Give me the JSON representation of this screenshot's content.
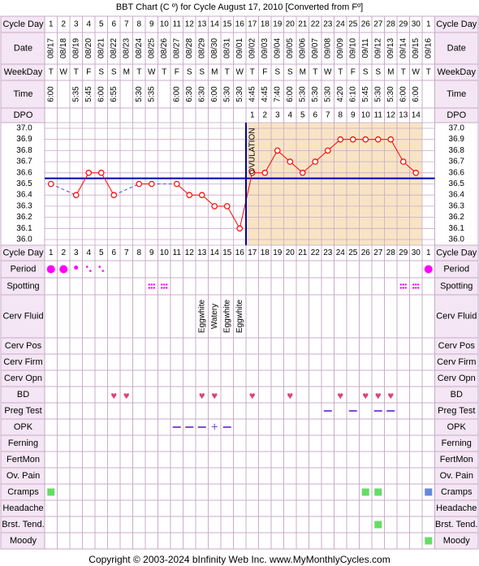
{
  "title": "BBT Chart (C º) for Cycle August 17, 2010  [Converted from Fº]",
  "footer": "Copyright © 2003-2024 bInfinity Web Inc.     www.MyMonthlyCycles.com",
  "row_labels": {
    "cycle_day": "Cycle Day",
    "date": "Date",
    "weekday": "WeekDay",
    "time": "Time",
    "dpo": "DPO",
    "period": "Period",
    "spotting": "Spotting",
    "cerv_fluid": "Cerv Fluid",
    "cerv_pos": "Cerv Pos",
    "cerv_firm": "Cerv Firm",
    "cerv_opn": "Cerv Opn",
    "bd": "BD",
    "preg_test": "Preg Test",
    "opk": "OPK",
    "ferning": "Ferning",
    "fertmon": "FertMon",
    "ov_pain": "Ov. Pain",
    "cramps": "Cramps",
    "headache": "Headache",
    "brst_tend": "Brst. Tend.",
    "moody": "Moody"
  },
  "colors": {
    "grid": "#c9a9c9",
    "label_bg": "#f4e6f4",
    "luteal_bg": "#f8e4c4",
    "temp_line": "#ff0000",
    "coverline": "#0000aa",
    "ovulation_line": "#0000aa",
    "period": "#ff00ff",
    "heart": "#e0407a",
    "opk_neg": "#8844dd",
    "preg_neg": "#8844dd",
    "symptom_green": "#66dd66",
    "symptom_blue": "#6688dd"
  },
  "chart_data": {
    "type": "line",
    "cycle_days": [
      "1",
      "2",
      "3",
      "4",
      "5",
      "6",
      "7",
      "8",
      "9",
      "10",
      "11",
      "12",
      "13",
      "14",
      "15",
      "16",
      "17",
      "18",
      "19",
      "20",
      "21",
      "22",
      "23",
      "24",
      "25",
      "26",
      "27",
      "28",
      "29",
      "30",
      "1"
    ],
    "dates": [
      "08/17",
      "08/18",
      "08/19",
      "08/20",
      "08/21",
      "08/22",
      "08/23",
      "08/24",
      "08/25",
      "08/26",
      "08/27",
      "08/28",
      "08/29",
      "08/30",
      "08/31",
      "09/01",
      "09/02",
      "09/03",
      "09/04",
      "09/05",
      "09/06",
      "09/07",
      "09/08",
      "09/09",
      "09/10",
      "09/11",
      "09/12",
      "09/13",
      "09/14",
      "09/15",
      "09/16"
    ],
    "weekdays": [
      "T",
      "W",
      "T",
      "F",
      "S",
      "S",
      "M",
      "T",
      "W",
      "T",
      "F",
      "S",
      "S",
      "M",
      "T",
      "W",
      "T",
      "F",
      "S",
      "S",
      "M",
      "T",
      "W",
      "T",
      "F",
      "S",
      "S",
      "M",
      "T",
      "W",
      "T"
    ],
    "times": [
      "6:00",
      "",
      "5:35",
      "5:45",
      "6:00",
      "6:55",
      "",
      "5:30",
      "5:35",
      "",
      "6:00",
      "6:30",
      "6:30",
      "6:00",
      "5:30",
      "5:30",
      "4:45",
      "4:45",
      "7:40",
      "6:00",
      "5:30",
      "5:30",
      "5:30",
      "4:20",
      "6:10",
      "5:45",
      "5:30",
      "5:30",
      "6:00",
      "6:00",
      ""
    ],
    "dpo": [
      "",
      "",
      "",
      "",
      "",
      "",
      "",
      "",
      "",
      "",
      "",
      "",
      "",
      "",
      "",
      "",
      "1",
      "2",
      "3",
      "4",
      "5",
      "6",
      "7",
      "8",
      "9",
      "10",
      "11",
      "12",
      "13",
      "14",
      ""
    ],
    "temps": [
      36.5,
      null,
      36.4,
      36.6,
      36.6,
      36.4,
      null,
      36.5,
      36.5,
      null,
      36.5,
      36.4,
      36.4,
      36.3,
      36.3,
      36.1,
      36.6,
      36.6,
      36.8,
      36.7,
      36.6,
      36.7,
      36.8,
      36.9,
      36.9,
      36.9,
      36.9,
      36.9,
      36.7,
      36.6,
      null
    ],
    "y_ticks": [
      "37.0",
      "36.9",
      "36.8",
      "36.7",
      "36.6",
      "36.5",
      "36.4",
      "36.3",
      "36.2",
      "36.1",
      "36.0"
    ],
    "ylim": [
      36.0,
      37.0
    ],
    "coverline": 36.55,
    "ovulation_day": 16,
    "ovulation_label": "OVULATION",
    "period": [
      "big",
      "big",
      "medium",
      "small",
      "small",
      "",
      "",
      "",
      "",
      "",
      "",
      "",
      "",
      "",
      "",
      "",
      "",
      "",
      "",
      "",
      "",
      "",
      "",
      "",
      "",
      "",
      "",
      "",
      "",
      "",
      "big"
    ],
    "spotting_days": [
      9,
      10,
      29,
      30
    ],
    "cerv_fluid": [
      "",
      "",
      "",
      "",
      "",
      "",
      "",
      "",
      "",
      "",
      "",
      "",
      "Eggwhite",
      "Watery",
      "Eggwhite",
      "Eggwhite",
      "",
      "",
      "",
      "",
      "",
      "",
      "",
      "",
      "",
      "",
      "",
      "",
      "",
      "",
      ""
    ],
    "bd_days": [
      6,
      7,
      13,
      14,
      17,
      20,
      24,
      26,
      27,
      28
    ],
    "preg_test_days": [
      23,
      25,
      27,
      28
    ],
    "opk": {
      "negative_days": [
        11,
        12,
        13,
        15
      ],
      "positive_days": [
        14
      ]
    },
    "cramps": {
      "green_days": [
        1,
        26,
        27
      ],
      "blue_days": [
        31
      ]
    },
    "brst_tend_days": [
      27
    ],
    "moody_days": [
      31
    ]
  }
}
